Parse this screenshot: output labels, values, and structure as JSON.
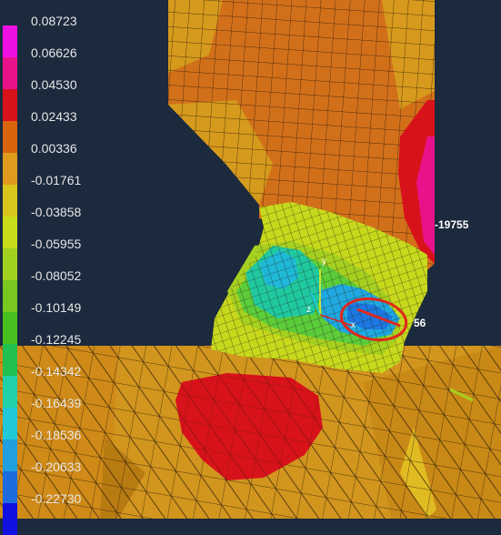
{
  "legend": {
    "labels": [
      "0.08723",
      "0.06626",
      "0.04530",
      "0.02433",
      "0.00336",
      "-0.01761",
      "-0.03858",
      "-0.05955",
      "-0.08052",
      "-0.10149",
      "-0.12245",
      "-0.14342",
      "-0.16439",
      "-0.18536",
      "-0.20633",
      "-0.22730"
    ],
    "colors": [
      "#ee10e0",
      "#e8128a",
      "#d8121a",
      "#d8640e",
      "#e09a1c",
      "#d8c51c",
      "#c8dc1c",
      "#a0d020",
      "#78c820",
      "#48c020",
      "#20c050",
      "#20d0a8",
      "#20c8d8",
      "#20a0e0",
      "#1c6ce0",
      "#1010e0"
    ]
  },
  "probe_labels": {
    "top_right": "-19755",
    "lower_right": "56"
  },
  "triad": {
    "x": "x",
    "y": "y",
    "z": "z"
  },
  "background_color": "#1b2a3d"
}
